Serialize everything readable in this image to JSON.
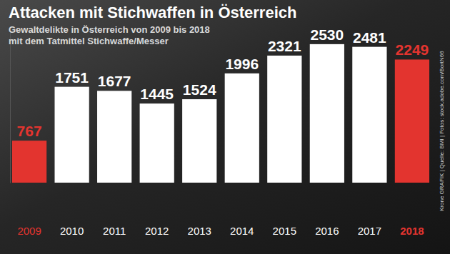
{
  "chart_data": {
    "type": "bar",
    "title": "Attacken mit Stichwaffen in Österreich",
    "subtitle": [
      "Gewaltdelikte in Österreich von 2009 bis 2018",
      "mit dem Tatmittel Stichwaffe/Messer"
    ],
    "source": "Krone GRAFIK | Quelle: BMI | Fotos: stock.adobe.com/BortN66",
    "categories": [
      "2009",
      "2010",
      "2011",
      "2012",
      "2013",
      "2014",
      "2015",
      "2016",
      "2017",
      "2018"
    ],
    "values": [
      767,
      1751,
      1677,
      1445,
      1524,
      1996,
      2321,
      2530,
      2481,
      2249
    ],
    "colors": [
      "#e3342f",
      "#ffffff",
      "#ffffff",
      "#ffffff",
      "#ffffff",
      "#ffffff",
      "#ffffff",
      "#ffffff",
      "#ffffff",
      "#e3342f"
    ],
    "ylim": [
      0,
      2750
    ],
    "data_labels": true,
    "tick_labels": "x",
    "grid": false
  }
}
